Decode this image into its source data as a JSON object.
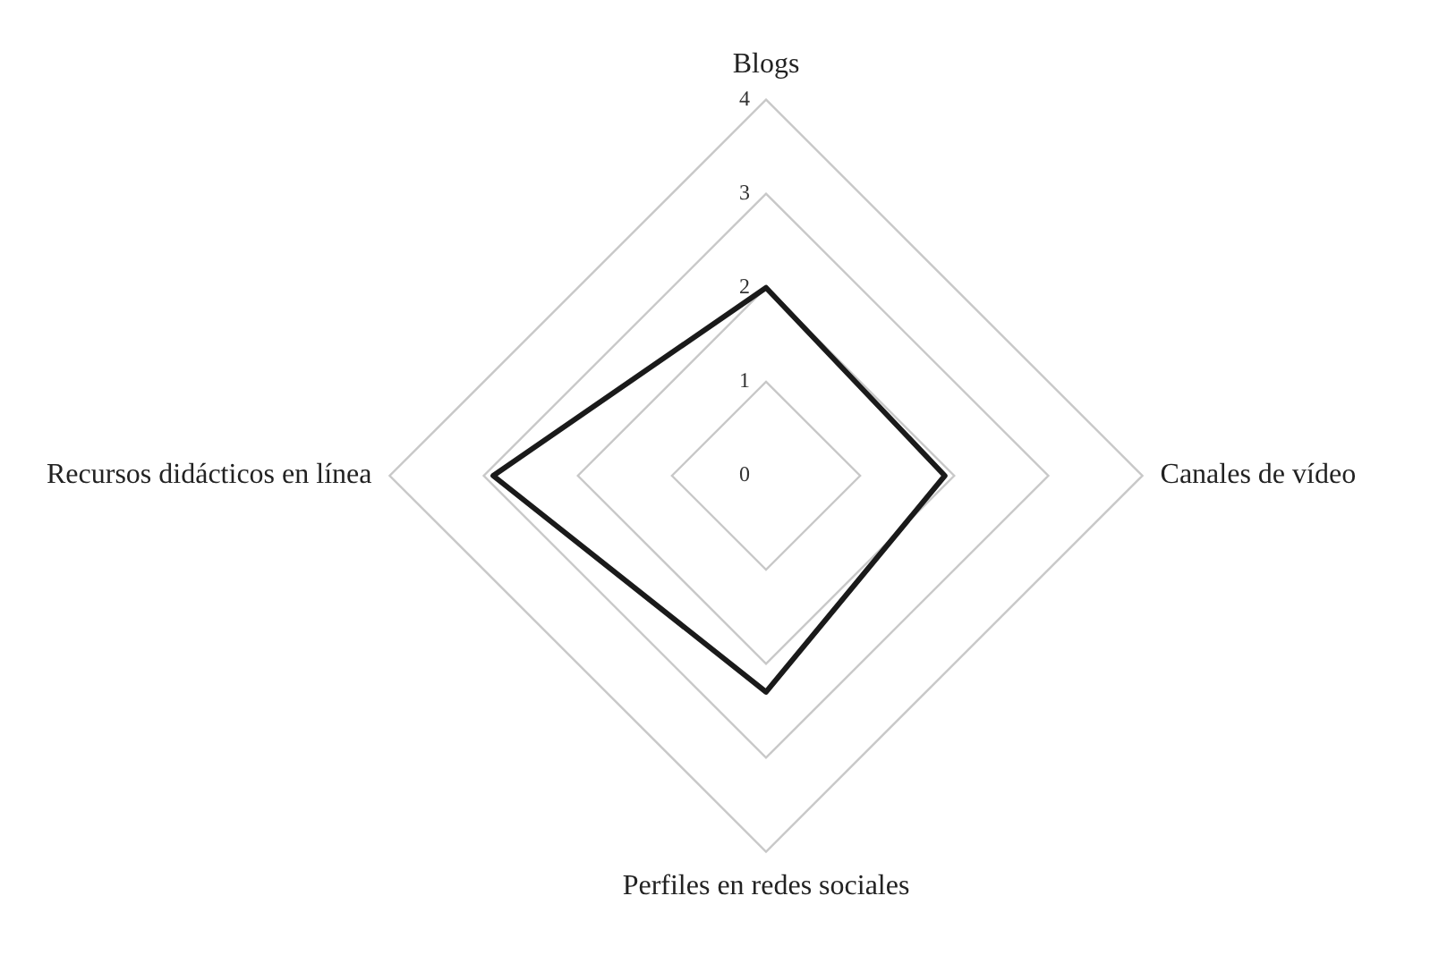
{
  "chart_data": {
    "type": "radar",
    "categories": [
      "Blogs",
      "Canales de vídeo",
      "Perfiles en redes sociales",
      "Recursos didácticos en línea"
    ],
    "series": [
      {
        "color": "#1a1a1a",
        "values": [
          2,
          1.9,
          2.3,
          2.9
        ]
      }
    ],
    "ylim": [
      0,
      4
    ],
    "yticks": [
      0,
      1,
      2,
      3,
      4
    ],
    "grid": true,
    "legend": false,
    "marker": "none"
  }
}
